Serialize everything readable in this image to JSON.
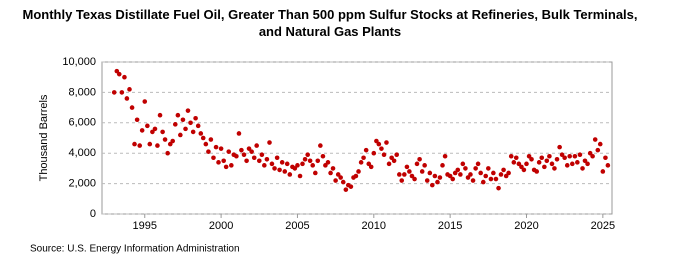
{
  "chart_data": {
    "type": "scatter",
    "title": "Monthly Texas Distillate Fuel Oil, Greater Than 500 ppm Sulfur Stocks at Refineries, Bulk Terminals, and Natural Gas Plants",
    "y_label": "Thousand Barrels",
    "source": "Source: U.S. Energy Information Administration",
    "xlim": [
      1992.2,
      2025.6
    ],
    "ylim": [
      0,
      10000
    ],
    "xticks": [
      1995,
      2000,
      2005,
      2010,
      2015,
      2020,
      2025
    ],
    "yticks": [
      0,
      {
        "value": 2000,
        "label": "2,000"
      },
      {
        "value": 4000,
        "label": "4,000"
      },
      {
        "value": 6000,
        "label": "6,000"
      },
      {
        "value": 8000,
        "label": "8,000"
      },
      {
        "value": 10000,
        "label": "10,000"
      }
    ],
    "grid": true,
    "series": [
      {
        "color": "#c00000",
        "x": [
          1993,
          1993.17,
          1993.33,
          1993.5,
          1993.67,
          1993.83,
          1994,
          1994.17,
          1994.33,
          1994.5,
          1994.67,
          1994.83,
          1995,
          1995.17,
          1995.33,
          1995.5,
          1995.67,
          1995.83,
          1996,
          1996.17,
          1996.33,
          1996.5,
          1996.67,
          1996.83,
          1997,
          1997.17,
          1997.33,
          1997.5,
          1997.67,
          1997.83,
          1998,
          1998.17,
          1998.33,
          1998.5,
          1998.67,
          1998.83,
          1999,
          1999.17,
          1999.33,
          1999.5,
          1999.67,
          1999.83,
          2000,
          2000.17,
          2000.33,
          2000.5,
          2000.67,
          2000.83,
          2001,
          2001.17,
          2001.33,
          2001.5,
          2001.67,
          2001.83,
          2002,
          2002.17,
          2002.33,
          2002.5,
          2002.67,
          2002.83,
          2003,
          2003.17,
          2003.33,
          2003.5,
          2003.67,
          2003.83,
          2004,
          2004.17,
          2004.33,
          2004.5,
          2004.67,
          2004.83,
          2005,
          2005.17,
          2005.33,
          2005.5,
          2005.67,
          2005.83,
          2006,
          2006.17,
          2006.33,
          2006.5,
          2006.67,
          2006.83,
          2007,
          2007.17,
          2007.33,
          2007.5,
          2007.67,
          2007.83,
          2008,
          2008.17,
          2008.33,
          2008.5,
          2008.67,
          2008.83,
          2009,
          2009.17,
          2009.33,
          2009.5,
          2009.67,
          2009.83,
          2010,
          2010.17,
          2010.33,
          2010.5,
          2010.67,
          2010.83,
          2011,
          2011.17,
          2011.33,
          2011.5,
          2011.67,
          2011.83,
          2012,
          2012.17,
          2012.33,
          2012.5,
          2012.67,
          2012.83,
          2013,
          2013.17,
          2013.33,
          2013.5,
          2013.67,
          2013.83,
          2014,
          2014.17,
          2014.33,
          2014.5,
          2014.67,
          2014.83,
          2015,
          2015.17,
          2015.33,
          2015.5,
          2015.67,
          2015.83,
          2016,
          2016.17,
          2016.33,
          2016.5,
          2016.67,
          2016.83,
          2017,
          2017.17,
          2017.33,
          2017.5,
          2017.67,
          2017.83,
          2018,
          2018.17,
          2018.33,
          2018.5,
          2018.67,
          2018.83,
          2019,
          2019.17,
          2019.33,
          2019.5,
          2019.67,
          2019.83,
          2020,
          2020.17,
          2020.33,
          2020.5,
          2020.67,
          2020.83,
          2021,
          2021.17,
          2021.33,
          2021.5,
          2021.67,
          2021.83,
          2022,
          2022.17,
          2022.33,
          2022.5,
          2022.67,
          2022.83,
          2023,
          2023.17,
          2023.33,
          2023.5,
          2023.67,
          2023.83,
          2024,
          2024.17,
          2024.33,
          2024.5,
          2024.67,
          2024.83,
          2025,
          2025.17,
          2025.33
        ],
        "values": [
          8000,
          9400,
          9200,
          8000,
          9000,
          7600,
          8200,
          7000,
          4600,
          6200,
          4500,
          5500,
          7400,
          5800,
          4600,
          5400,
          5600,
          4500,
          6500,
          5400,
          4900,
          4000,
          4600,
          4800,
          5900,
          6500,
          5200,
          6200,
          5600,
          6800,
          6000,
          5400,
          6300,
          5800,
          5300,
          5000,
          4600,
          4100,
          4900,
          3700,
          4400,
          3400,
          4300,
          3500,
          3100,
          4100,
          3200,
          3900,
          3800,
          5300,
          4200,
          3900,
          3500,
          4300,
          4100,
          3700,
          4500,
          3500,
          3900,
          3200,
          3600,
          4700,
          3300,
          3000,
          3700,
          2900,
          3400,
          2800,
          3300,
          2600,
          3100,
          3000,
          3200,
          2500,
          3300,
          3600,
          3900,
          3500,
          3200,
          2700,
          3500,
          4500,
          3800,
          3200,
          3400,
          2700,
          3000,
          2200,
          2600,
          2400,
          2100,
          1600,
          1900,
          1800,
          2400,
          2500,
          2800,
          3400,
          3700,
          4200,
          3300,
          3100,
          4000,
          4800,
          4600,
          4300,
          3900,
          4700,
          3300,
          3700,
          3500,
          3900,
          2600,
          2200,
          2600,
          3100,
          2800,
          2500,
          2300,
          3300,
          3600,
          2800,
          3200,
          2200,
          2700,
          1900,
          2500,
          2100,
          2400,
          3200,
          3800,
          2600,
          2500,
          2300,
          2700,
          2900,
          2600,
          3300,
          3000,
          2400,
          2600,
          2200,
          3000,
          3300,
          2700,
          2100,
          2500,
          3000,
          2300,
          2700,
          2300,
          1700,
          2600,
          2900,
          2500,
          2700,
          3800,
          3400,
          3700,
          3300,
          3100,
          2900,
          3300,
          3800,
          3600,
          2900,
          2800,
          3400,
          3700,
          3100,
          3500,
          3800,
          3300,
          3000,
          3600,
          4400,
          3900,
          3700,
          3200,
          3800,
          3300,
          3800,
          3400,
          3900,
          3000,
          3500,
          3300,
          4000,
          3800,
          4900,
          4200,
          4600,
          2800,
          3700,
          3200
        ]
      }
    ]
  }
}
